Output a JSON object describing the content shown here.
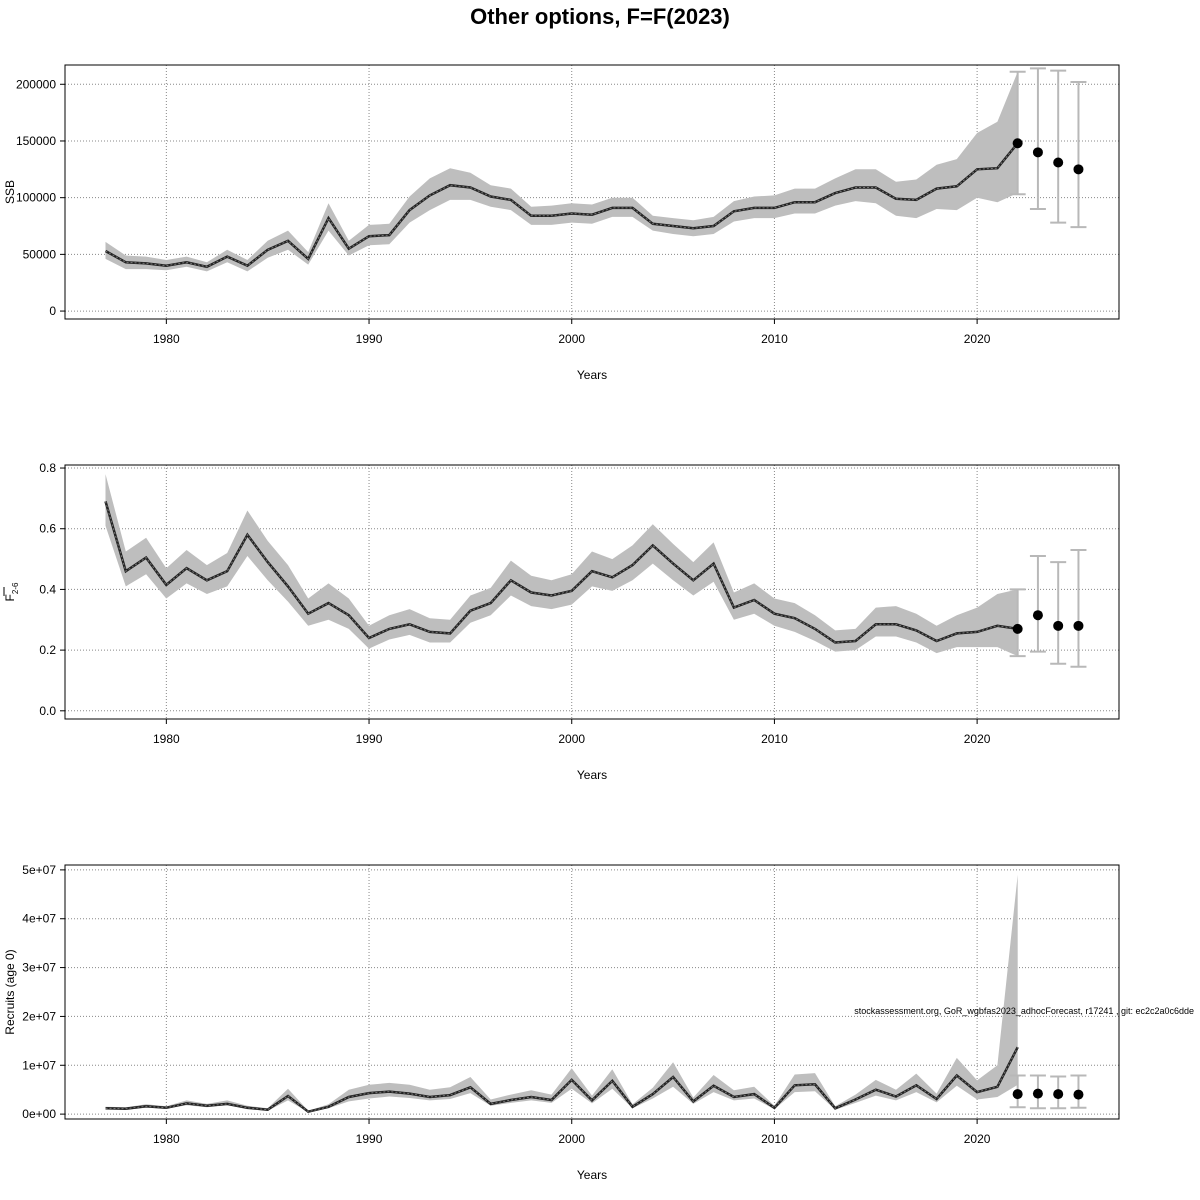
{
  "title": "Other options, F=F(2023)",
  "footnote": "stockassessment.org, GoR_wgbfas2023_adhocForecast, r17241 , git: ec2c2a0c6dde",
  "chart_data": [
    {
      "type": "line",
      "ylabel": "SSB",
      "xlabel": "Years",
      "xlim": [
        1975,
        2027
      ],
      "ylim": [
        -7000,
        217000
      ],
      "x_ticks": [
        1980,
        1990,
        2000,
        2010,
        2020
      ],
      "y_ticks": [
        0,
        50000,
        100000,
        150000,
        200000
      ],
      "y_tick_labels": [
        "0",
        "50000",
        "100000",
        "150000",
        "200000"
      ],
      "grid": true,
      "x": [
        1977,
        1978,
        1979,
        1980,
        1981,
        1982,
        1983,
        1984,
        1985,
        1986,
        1987,
        1988,
        1989,
        1990,
        1991,
        1992,
        1993,
        1994,
        1995,
        1996,
        1997,
        1998,
        1999,
        2000,
        2001,
        2002,
        2003,
        2004,
        2005,
        2006,
        2007,
        2008,
        2009,
        2010,
        2011,
        2012,
        2013,
        2014,
        2015,
        2016,
        2017,
        2018,
        2019,
        2020,
        2021,
        2022
      ],
      "estimate": [
        53000,
        43000,
        42000,
        40000,
        43000,
        39000,
        48000,
        40000,
        54000,
        62000,
        46000,
        82000,
        55000,
        66000,
        67000,
        89000,
        102000,
        111000,
        109000,
        101000,
        98000,
        84000,
        84000,
        86000,
        85000,
        91000,
        91000,
        77000,
        75000,
        73000,
        75000,
        88000,
        91000,
        91000,
        96000,
        96000,
        104000,
        109000,
        109000,
        99000,
        98000,
        108000,
        110000,
        125000,
        126000,
        148000
      ],
      "lower": [
        46000,
        37000,
        37000,
        36000,
        39000,
        35000,
        43000,
        35000,
        47000,
        54000,
        41000,
        71000,
        49000,
        58000,
        59000,
        78000,
        89000,
        98000,
        98000,
        92000,
        89000,
        76000,
        76000,
        78000,
        77000,
        83000,
        83000,
        71000,
        68000,
        66000,
        68000,
        79000,
        82000,
        82000,
        86000,
        86000,
        93000,
        97000,
        95000,
        84000,
        82000,
        90000,
        89000,
        100000,
        96000,
        104000
      ],
      "upper": [
        61000,
        49000,
        48000,
        45000,
        48000,
        43000,
        54000,
        45000,
        62000,
        71000,
        52000,
        95000,
        62000,
        76000,
        77000,
        101000,
        117000,
        126000,
        122000,
        111000,
        108000,
        92000,
        93000,
        95000,
        94000,
        100000,
        100000,
        84000,
        82000,
        80000,
        83000,
        97000,
        101000,
        102000,
        108000,
        108000,
        117000,
        125000,
        125000,
        114000,
        116000,
        129000,
        134000,
        157000,
        167000,
        211000
      ],
      "forecast": {
        "x": [
          2022,
          2023,
          2024,
          2025
        ],
        "median": [
          148000,
          140000,
          131000,
          125000
        ],
        "lower": [
          103000,
          90000,
          78000,
          74000
        ],
        "upper": [
          211000,
          214000,
          212000,
          202000
        ]
      }
    },
    {
      "type": "line",
      "ylabel": "F",
      "ylabel_sub": "2-6",
      "xlabel": "Years",
      "xlim": [
        1975,
        2027
      ],
      "ylim": [
        -0.027,
        0.81
      ],
      "x_ticks": [
        1980,
        1990,
        2000,
        2010,
        2020
      ],
      "y_ticks": [
        0,
        0.2,
        0.4,
        0.6,
        0.8
      ],
      "y_tick_labels": [
        "0.0",
        "0.2",
        "0.4",
        "0.6",
        "0.8"
      ],
      "grid": true,
      "x": [
        1977,
        1978,
        1979,
        1980,
        1981,
        1982,
        1983,
        1984,
        1985,
        1986,
        1987,
        1988,
        1989,
        1990,
        1991,
        1992,
        1993,
        1994,
        1995,
        1996,
        1997,
        1998,
        1999,
        2000,
        2001,
        2002,
        2003,
        2004,
        2005,
        2006,
        2007,
        2008,
        2009,
        2010,
        2011,
        2012,
        2013,
        2014,
        2015,
        2016,
        2017,
        2018,
        2019,
        2020,
        2021,
        2022
      ],
      "estimate": [
        0.69,
        0.46,
        0.505,
        0.415,
        0.47,
        0.43,
        0.46,
        0.58,
        0.49,
        0.41,
        0.32,
        0.355,
        0.315,
        0.24,
        0.27,
        0.285,
        0.26,
        0.255,
        0.33,
        0.355,
        0.43,
        0.39,
        0.38,
        0.395,
        0.46,
        0.44,
        0.48,
        0.545,
        0.485,
        0.43,
        0.485,
        0.34,
        0.365,
        0.32,
        0.305,
        0.27,
        0.225,
        0.23,
        0.285,
        0.285,
        0.265,
        0.23,
        0.255,
        0.26,
        0.28,
        0.27
      ],
      "lower": [
        0.61,
        0.41,
        0.45,
        0.37,
        0.42,
        0.385,
        0.41,
        0.51,
        0.43,
        0.36,
        0.28,
        0.3,
        0.27,
        0.205,
        0.235,
        0.25,
        0.225,
        0.225,
        0.29,
        0.315,
        0.38,
        0.345,
        0.335,
        0.35,
        0.41,
        0.395,
        0.43,
        0.485,
        0.43,
        0.38,
        0.425,
        0.3,
        0.32,
        0.28,
        0.26,
        0.23,
        0.195,
        0.2,
        0.245,
        0.245,
        0.225,
        0.19,
        0.21,
        0.21,
        0.21,
        0.18
      ],
      "upper": [
        0.78,
        0.525,
        0.57,
        0.47,
        0.53,
        0.48,
        0.52,
        0.66,
        0.56,
        0.48,
        0.37,
        0.42,
        0.37,
        0.28,
        0.315,
        0.335,
        0.305,
        0.3,
        0.38,
        0.405,
        0.495,
        0.445,
        0.43,
        0.45,
        0.525,
        0.5,
        0.545,
        0.615,
        0.55,
        0.49,
        0.555,
        0.39,
        0.42,
        0.37,
        0.355,
        0.315,
        0.265,
        0.27,
        0.34,
        0.345,
        0.32,
        0.28,
        0.315,
        0.34,
        0.385,
        0.4
      ],
      "forecast": {
        "x": [
          2022,
          2023,
          2024,
          2025
        ],
        "median": [
          0.27,
          0.315,
          0.28,
          0.28
        ],
        "lower": [
          0.18,
          0.195,
          0.155,
          0.145
        ],
        "upper": [
          0.4,
          0.51,
          0.49,
          0.53
        ]
      }
    },
    {
      "type": "line",
      "ylabel": "Recruits (age 0)",
      "xlabel": "Years",
      "xlim": [
        1975,
        2027
      ],
      "ylim": [
        -1000000,
        51000000
      ],
      "x_ticks": [
        1980,
        1990,
        2000,
        2010,
        2020
      ],
      "y_ticks": [
        0,
        10000000,
        20000000,
        30000000,
        40000000,
        50000000
      ],
      "y_tick_labels": [
        "0e+00",
        "1e+07",
        "2e+07",
        "3e+07",
        "4e+07",
        "5e+07"
      ],
      "grid": true,
      "x": [
        1977,
        1978,
        1979,
        1980,
        1981,
        1982,
        1983,
        1984,
        1985,
        1986,
        1987,
        1988,
        1989,
        1990,
        1991,
        1992,
        1993,
        1994,
        1995,
        1996,
        1997,
        1998,
        1999,
        2000,
        2001,
        2002,
        2003,
        2004,
        2005,
        2006,
        2007,
        2008,
        2009,
        2010,
        2011,
        2012,
        2013,
        2014,
        2015,
        2016,
        2017,
        2018,
        2019,
        2020,
        2021,
        2022
      ],
      "estimate": [
        1200000,
        1100000,
        1600000,
        1300000,
        2200000,
        1700000,
        2100000,
        1300000,
        900000,
        3700000,
        500000,
        1500000,
        3500000,
        4300000,
        4600000,
        4200000,
        3500000,
        3900000,
        5500000,
        2100000,
        2900000,
        3500000,
        2900000,
        7000000,
        2800000,
        6800000,
        1500000,
        4100000,
        7600000,
        2600000,
        5800000,
        3500000,
        4100000,
        1300000,
        5900000,
        6100000,
        1200000,
        3000000,
        5000000,
        3600000,
        5900000,
        3100000,
        7900000,
        4500000,
        5600000,
        13700000
      ],
      "lower": [
        1000000,
        900000,
        1300000,
        1100000,
        1800000,
        1400000,
        1800000,
        1000000,
        700000,
        2800000,
        400000,
        1200000,
        2600000,
        3200000,
        3600000,
        3300000,
        2800000,
        3100000,
        4300000,
        1700000,
        2300000,
        2800000,
        2300000,
        5200000,
        2200000,
        5200000,
        1200000,
        3200000,
        5600000,
        2100000,
        4500000,
        2800000,
        3200000,
        1000000,
        4500000,
        4700000,
        900000,
        2300000,
        3800000,
        2800000,
        4500000,
        2400000,
        5800000,
        3000000,
        3500000,
        6000000
      ],
      "upper": [
        1500000,
        1400000,
        2000000,
        1600000,
        2800000,
        2100000,
        2800000,
        1700000,
        1200000,
        5200000,
        700000,
        2000000,
        5000000,
        6000000,
        6400000,
        6000000,
        5000000,
        5500000,
        7600000,
        3000000,
        4000000,
        4900000,
        4000000,
        9400000,
        3800000,
        9200000,
        2000000,
        5400000,
        10600000,
        3400000,
        8000000,
        4900000,
        5600000,
        1700000,
        8100000,
        8400000,
        1600000,
        4000000,
        7000000,
        5000000,
        8300000,
        4200000,
        11500000,
        6900000,
        10000000,
        49000000
      ],
      "forecast": {
        "x": [
          2022,
          2023,
          2024,
          2025
        ],
        "median": [
          4100000,
          4200000,
          4100000,
          4000000
        ],
        "lower": [
          1400000,
          1200000,
          1200000,
          1300000
        ],
        "upper": [
          7900000,
          7900000,
          7700000,
          7900000
        ]
      }
    }
  ]
}
